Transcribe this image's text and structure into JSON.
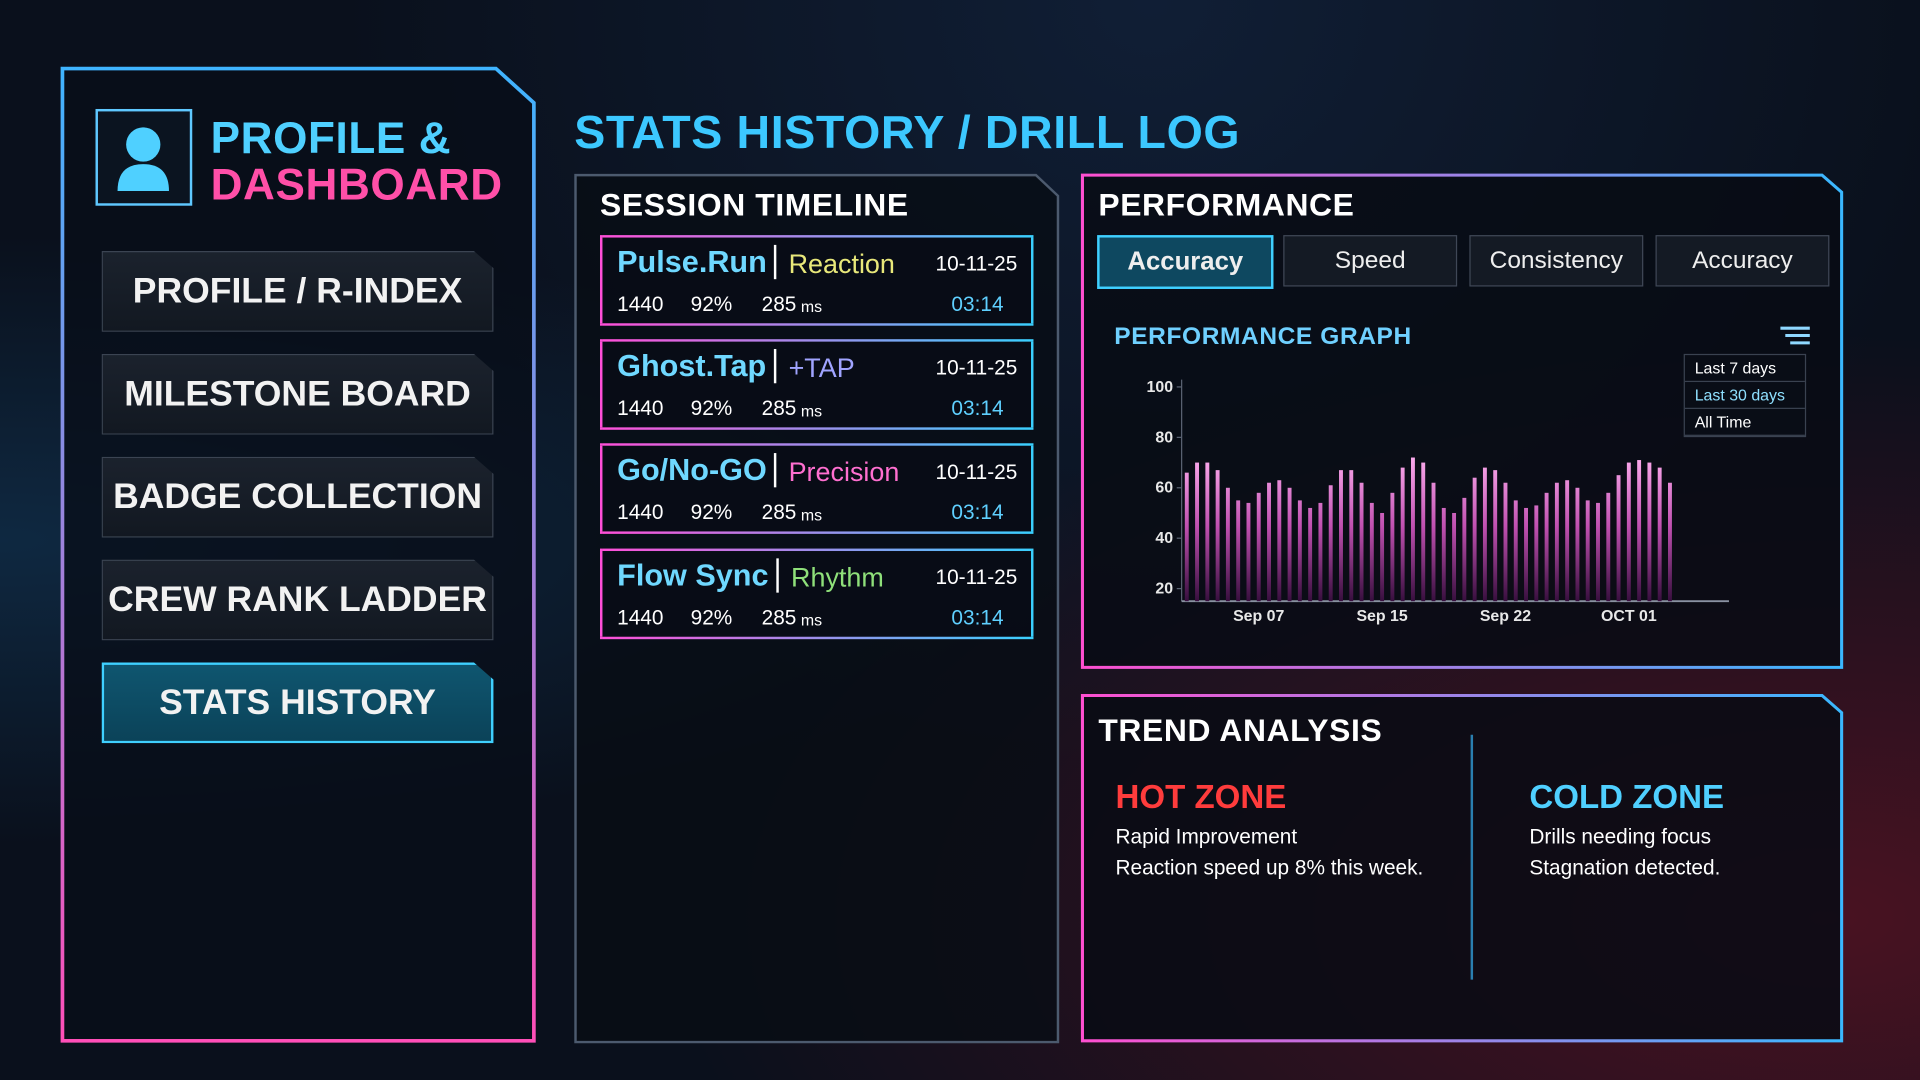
{
  "sidebar": {
    "title_line1": "PROFILE &",
    "title_line2": "DASHBOARD",
    "nav": [
      "PROFILE / R-INDEX",
      "MILESTONE BOARD",
      "BADGE COLLECTION",
      "CREW RANK LADDER",
      "STATS HISTORY"
    ]
  },
  "header": {
    "title": "STATS HISTORY / DRILL LOG"
  },
  "session_timeline": {
    "title": "SESSION TIMELINE",
    "sessions": [
      {
        "name": "Pulse.Run",
        "tag": "Reaction",
        "date": "10-11-25",
        "score": "1440",
        "accuracy": "92%",
        "time": "285",
        "time_unit": "ms",
        "duration": "03:14"
      },
      {
        "name": "Ghost.Tap",
        "tag": "+TAP",
        "date": "10-11-25",
        "score": "1440",
        "accuracy": "92%",
        "time": "285",
        "time_unit": "ms",
        "duration": "03:14"
      },
      {
        "name": "Go/No-GO",
        "tag": "Precision",
        "date": "10-11-25",
        "score": "1440",
        "accuracy": "92%",
        "time": "285",
        "time_unit": "ms",
        "duration": "03:14"
      },
      {
        "name": "Flow Sync",
        "tag": "Rhythm",
        "date": "10-11-25",
        "score": "1440",
        "accuracy": "92%",
        "time": "285",
        "time_unit": "ms",
        "duration": "03:14"
      }
    ]
  },
  "performance": {
    "title": "PERFORMANCE",
    "tabs": [
      "Accuracy",
      "Speed",
      "Consistency",
      "Accuracy"
    ],
    "range_menu": [
      "Last 7 days",
      "Last 30 days",
      "All Time"
    ]
  },
  "chart_data": {
    "type": "bar",
    "title": "PERFORMANCE GRAPH",
    "color": "#ff8fe6",
    "categories": [
      null,
      null,
      null,
      null,
      null,
      null,
      null,
      "Sep 07",
      null,
      null,
      null,
      null,
      null,
      null,
      null,
      null,
      null,
      null,
      null,
      "Sep 15",
      null,
      null,
      null,
      null,
      null,
      null,
      null,
      null,
      null,
      null,
      null,
      "Sep 22",
      null,
      null,
      null,
      null,
      null,
      null,
      null,
      null,
      null,
      null,
      null,
      "OCT 01",
      null,
      null,
      null,
      null
    ],
    "values": [
      66,
      70,
      70,
      67,
      60,
      55,
      54,
      58,
      62,
      63,
      60,
      55,
      52,
      54,
      61,
      67,
      67,
      62,
      54,
      50,
      58,
      68,
      72,
      70,
      62,
      52,
      50,
      56,
      64,
      68,
      67,
      62,
      55,
      52,
      53,
      58,
      62,
      63,
      60,
      55,
      54,
      58,
      65,
      70,
      71,
      70,
      68,
      62
    ],
    "ylim": [
      15,
      100
    ],
    "yticks": [
      20,
      40,
      60,
      80,
      100
    ]
  },
  "trend_analysis": {
    "title": "TREND ANALYSIS",
    "hot_zone": {
      "title": "HOT ZONE",
      "lines": [
        "Rapid Improvement",
        "Reaction speed up 8% this week."
      ]
    },
    "cold_zone": {
      "title": "COLD ZONE",
      "lines": [
        "Drills needing focus",
        "Stagnation detected."
      ]
    }
  }
}
